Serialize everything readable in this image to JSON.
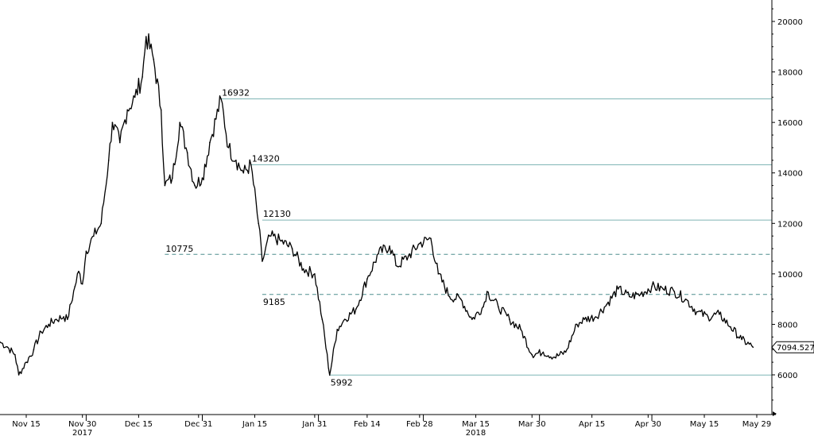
{
  "chart_data": {
    "type": "line",
    "title": "",
    "xlabel": "",
    "ylabel": "",
    "ylim": [
      5000,
      21000
    ],
    "y_ticks": [
      6000,
      8000,
      10000,
      12000,
      14000,
      16000,
      18000,
      20000
    ],
    "y_axis_side": "right",
    "grid": false,
    "legend": "none",
    "x_tick_labels": [
      "Nov 15",
      "Nov 30",
      "Dec 15",
      "Dec 31",
      "Jan 15",
      "Jan 31",
      "Feb 14",
      "Feb 28",
      "Mar 15",
      "Mar 30",
      "Apr 15",
      "Apr 30",
      "May 15",
      "May 29"
    ],
    "x_year_labels": [
      {
        "label": "2017",
        "under": "Nov 30"
      },
      {
        "label": "2018",
        "under": "Mar 15"
      }
    ],
    "last_value_label": "7094.5273",
    "series": [
      {
        "line_color": "#000000",
        "x": [
          "2017-11-08",
          "2017-11-10",
          "2017-11-12",
          "2017-11-13",
          "2017-11-15",
          "2017-11-17",
          "2017-11-19",
          "2017-11-21",
          "2017-11-23",
          "2017-11-25",
          "2017-11-26",
          "2017-11-28",
          "2017-11-29",
          "2017-11-30",
          "2017-12-01",
          "2017-12-03",
          "2017-12-05",
          "2017-12-07",
          "2017-12-08",
          "2017-12-10",
          "2017-12-12",
          "2017-12-14",
          "2017-12-16",
          "2017-12-17",
          "2017-12-19",
          "2017-12-21",
          "2017-12-22",
          "2017-12-24",
          "2017-12-26",
          "2017-12-28",
          "2017-12-30",
          "2018-01-01",
          "2018-01-03",
          "2018-01-06",
          "2018-01-08",
          "2018-01-10",
          "2018-01-12",
          "2018-01-14",
          "2018-01-16",
          "2018-01-17",
          "2018-01-19",
          "2018-01-22",
          "2018-01-25",
          "2018-01-28",
          "2018-01-31",
          "2018-02-02",
          "2018-02-04",
          "2018-02-06",
          "2018-02-08",
          "2018-02-11",
          "2018-02-14",
          "2018-02-17",
          "2018-02-20",
          "2018-02-22",
          "2018-02-25",
          "2018-02-28",
          "2018-03-03",
          "2018-03-05",
          "2018-03-08",
          "2018-03-11",
          "2018-03-14",
          "2018-03-17",
          "2018-03-18",
          "2018-03-21",
          "2018-03-24",
          "2018-03-27",
          "2018-03-30",
          "2018-04-02",
          "2018-04-05",
          "2018-04-08",
          "2018-04-11",
          "2018-04-13",
          "2018-04-16",
          "2018-04-19",
          "2018-04-22",
          "2018-04-25",
          "2018-04-28",
          "2018-05-01",
          "2018-05-04",
          "2018-05-07",
          "2018-05-10",
          "2018-05-13",
          "2018-05-16",
          "2018-05-19",
          "2018-05-22",
          "2018-05-25",
          "2018-05-28"
        ],
        "values": [
          7300,
          7100,
          6800,
          6000,
          6500,
          7000,
          7700,
          8000,
          8200,
          8300,
          8200,
          9500,
          10100,
          9600,
          10900,
          11500,
          12000,
          14500,
          16000,
          15200,
          16500,
          17000,
          17800,
          19400,
          18500,
          16500,
          13500,
          13800,
          16000,
          14800,
          13500,
          13800,
          15200,
          16932,
          15000,
          14500,
          14000,
          14320,
          12000,
          10500,
          11500,
          11300,
          11000,
          10200,
          10000,
          8200,
          5992,
          7800,
          8200,
          8600,
          9800,
          10800,
          11100,
          10300,
          10700,
          11200,
          11400,
          10000,
          9100,
          9000,
          8200,
          8700,
          9300,
          8700,
          8200,
          7800,
          6800,
          6900,
          6700,
          6900,
          8000,
          8200,
          8300,
          8800,
          9400,
          9100,
          9200,
          9500,
          9400,
          9300,
          9000,
          8500,
          8300,
          8400,
          7900,
          7400,
          7094.5
        ]
      }
    ],
    "annotations": [
      {
        "label": "16932",
        "value": 16932,
        "line_style": "solid",
        "line_color": "#7fb5b5",
        "from": "2018-01-06"
      },
      {
        "label": "14320",
        "value": 14320,
        "line_style": "solid",
        "line_color": "#7fb5b5",
        "from": "2018-01-14"
      },
      {
        "label": "12130",
        "value": 12130,
        "line_style": "solid",
        "line_color": "#7fb5b5",
        "from": "2018-01-17"
      },
      {
        "label": "10775",
        "value": 10775,
        "line_style": "dashed",
        "line_color": "#4e8d8d",
        "from": "2017-12-22"
      },
      {
        "label": "9185",
        "value": 9185,
        "line_style": "dashed",
        "line_color": "#4e8d8d",
        "from": "2018-01-17"
      },
      {
        "label": "5992",
        "value": 5992,
        "line_style": "solid",
        "line_color": "#7fb5b5",
        "from": "2018-02-04"
      }
    ]
  }
}
